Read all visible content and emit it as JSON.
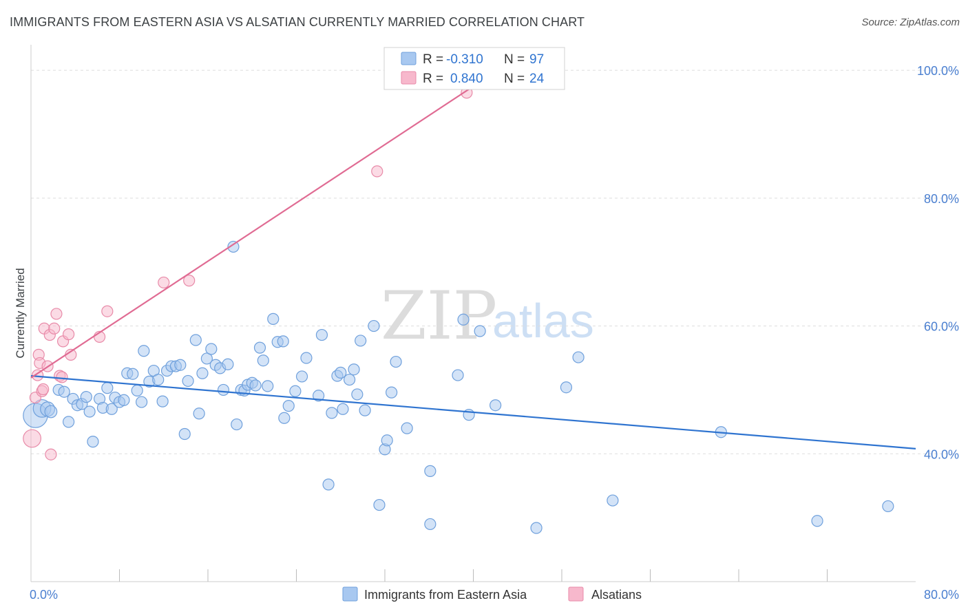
{
  "header": {
    "title": "IMMIGRANTS FROM EASTERN ASIA VS ALSATIAN CURRENTLY MARRIED CORRELATION CHART",
    "source": "Source: ZipAtlas.com"
  },
  "watermark": {
    "zip": "ZIP",
    "atlas": "atlas"
  },
  "colors": {
    "blue_fill": "#a8c8f0",
    "blue_stroke": "#6fa0dc",
    "blue_line": "#2f74d0",
    "pink_fill": "#f7b8cc",
    "pink_stroke": "#e88aa8",
    "pink_line": "#e06b93",
    "axis_text": "#4a7fd0",
    "grid": "#dddddd"
  },
  "legend_top": {
    "rows": [
      {
        "r_label": "R =",
        "r_value": "-0.310",
        "n_label": "N =",
        "n_value": "97"
      },
      {
        "r_label": "R =",
        "r_value": "0.840",
        "n_label": "N =",
        "n_value": "24"
      }
    ]
  },
  "chart_data": {
    "type": "scatter",
    "title": "IMMIGRANTS FROM EASTERN ASIA VS ALSATIAN CURRENTLY MARRIED CORRELATION CHART",
    "xlabel": "",
    "ylabel": "Currently Married",
    "xlim": [
      0,
      80
    ],
    "ylim": [
      20,
      104
    ],
    "x_tick_labels": [
      {
        "value": 0,
        "label": "0.0%"
      },
      {
        "value": 80,
        "label": "80.0%"
      }
    ],
    "x_minor_ticks": [
      8,
      16,
      24,
      32,
      40,
      48,
      56,
      64,
      72
    ],
    "y_ticks": [
      {
        "value": 40,
        "label": "40.0%"
      },
      {
        "value": 60,
        "label": "60.0%"
      },
      {
        "value": 80,
        "label": "80.0%"
      },
      {
        "value": 100,
        "label": "100.0%"
      }
    ],
    "grid": true,
    "legend_position": "bottom-center",
    "series": [
      {
        "name": "Immigrants from Eastern Asia",
        "color": "#a8c8f0",
        "R": -0.31,
        "N": 97,
        "trend": {
          "x": [
            0,
            80
          ],
          "y": [
            52.2,
            40.8
          ]
        },
        "points": [
          {
            "x": 0.4,
            "y": 46.0,
            "s": 2.2
          },
          {
            "x": 1.0,
            "y": 47.1,
            "s": 1.6
          },
          {
            "x": 1.5,
            "y": 47.0,
            "s": 1.3
          },
          {
            "x": 1.8,
            "y": 46.6,
            "s": 1.1
          },
          {
            "x": 2.5,
            "y": 50.0
          },
          {
            "x": 3.0,
            "y": 49.7
          },
          {
            "x": 3.4,
            "y": 45.0
          },
          {
            "x": 3.8,
            "y": 48.6
          },
          {
            "x": 4.2,
            "y": 47.6
          },
          {
            "x": 4.6,
            "y": 47.8
          },
          {
            "x": 5.0,
            "y": 48.9
          },
          {
            "x": 5.3,
            "y": 46.6
          },
          {
            "x": 5.6,
            "y": 41.9
          },
          {
            "x": 6.2,
            "y": 48.6
          },
          {
            "x": 6.5,
            "y": 47.2
          },
          {
            "x": 6.9,
            "y": 50.3
          },
          {
            "x": 7.3,
            "y": 47.0
          },
          {
            "x": 7.6,
            "y": 48.8
          },
          {
            "x": 8.0,
            "y": 48.1
          },
          {
            "x": 8.4,
            "y": 48.4
          },
          {
            "x": 8.7,
            "y": 52.6
          },
          {
            "x": 9.2,
            "y": 52.5
          },
          {
            "x": 9.6,
            "y": 49.9
          },
          {
            "x": 10.0,
            "y": 48.1
          },
          {
            "x": 10.2,
            "y": 56.1
          },
          {
            "x": 10.7,
            "y": 51.3
          },
          {
            "x": 11.1,
            "y": 53.0
          },
          {
            "x": 11.5,
            "y": 51.6
          },
          {
            "x": 11.9,
            "y": 48.2
          },
          {
            "x": 12.3,
            "y": 53.0
          },
          {
            "x": 12.7,
            "y": 53.7
          },
          {
            "x": 13.1,
            "y": 53.7
          },
          {
            "x": 13.5,
            "y": 53.9
          },
          {
            "x": 13.9,
            "y": 43.1
          },
          {
            "x": 14.2,
            "y": 51.4
          },
          {
            "x": 14.9,
            "y": 57.8
          },
          {
            "x": 15.2,
            "y": 46.3
          },
          {
            "x": 15.5,
            "y": 52.6
          },
          {
            "x": 15.9,
            "y": 54.9
          },
          {
            "x": 16.3,
            "y": 56.4
          },
          {
            "x": 16.7,
            "y": 53.9
          },
          {
            "x": 17.1,
            "y": 53.4
          },
          {
            "x": 17.4,
            "y": 50.0
          },
          {
            "x": 17.8,
            "y": 54.0
          },
          {
            "x": 18.3,
            "y": 72.4
          },
          {
            "x": 18.6,
            "y": 44.6
          },
          {
            "x": 19.0,
            "y": 50.0
          },
          {
            "x": 19.3,
            "y": 49.9
          },
          {
            "x": 19.6,
            "y": 50.8
          },
          {
            "x": 20.0,
            "y": 51.1
          },
          {
            "x": 20.3,
            "y": 50.7
          },
          {
            "x": 20.7,
            "y": 56.6
          },
          {
            "x": 21.0,
            "y": 54.6
          },
          {
            "x": 21.4,
            "y": 50.6
          },
          {
            "x": 21.9,
            "y": 61.1
          },
          {
            "x": 22.3,
            "y": 57.5
          },
          {
            "x": 22.8,
            "y": 57.6
          },
          {
            "x": 22.9,
            "y": 45.6
          },
          {
            "x": 23.3,
            "y": 47.5
          },
          {
            "x": 23.9,
            "y": 49.8
          },
          {
            "x": 24.5,
            "y": 52.1
          },
          {
            "x": 24.9,
            "y": 55.0
          },
          {
            "x": 26.0,
            "y": 49.1
          },
          {
            "x": 26.3,
            "y": 58.6
          },
          {
            "x": 26.9,
            "y": 35.2
          },
          {
            "x": 27.2,
            "y": 46.4
          },
          {
            "x": 27.7,
            "y": 52.2
          },
          {
            "x": 28.0,
            "y": 52.7
          },
          {
            "x": 28.2,
            "y": 47.0
          },
          {
            "x": 28.8,
            "y": 51.6
          },
          {
            "x": 29.2,
            "y": 53.2
          },
          {
            "x": 29.5,
            "y": 49.3
          },
          {
            "x": 29.8,
            "y": 57.7
          },
          {
            "x": 30.2,
            "y": 46.8
          },
          {
            "x": 31.0,
            "y": 60.0
          },
          {
            "x": 31.5,
            "y": 32.0
          },
          {
            "x": 32.0,
            "y": 40.7
          },
          {
            "x": 32.2,
            "y": 42.1
          },
          {
            "x": 32.6,
            "y": 49.6
          },
          {
            "x": 33.0,
            "y": 54.4
          },
          {
            "x": 34.0,
            "y": 44.0
          },
          {
            "x": 36.1,
            "y": 37.3
          },
          {
            "x": 36.1,
            "y": 29.0
          },
          {
            "x": 38.6,
            "y": 52.3
          },
          {
            "x": 39.1,
            "y": 61.0
          },
          {
            "x": 39.6,
            "y": 46.1
          },
          {
            "x": 40.6,
            "y": 59.2
          },
          {
            "x": 42.0,
            "y": 47.6
          },
          {
            "x": 45.7,
            "y": 28.4
          },
          {
            "x": 48.4,
            "y": 50.4
          },
          {
            "x": 49.5,
            "y": 55.1
          },
          {
            "x": 52.6,
            "y": 32.7
          },
          {
            "x": 62.4,
            "y": 43.4
          },
          {
            "x": 71.1,
            "y": 29.5
          },
          {
            "x": 77.5,
            "y": 31.8
          }
        ]
      },
      {
        "name": "Alsatians",
        "color": "#f7b8cc",
        "R": 0.84,
        "N": 24,
        "trend": {
          "x": [
            0,
            40
          ],
          "y": [
            51.9,
            97.5
          ]
        },
        "points": [
          {
            "x": 0.1,
            "y": 42.4,
            "s": 1.6
          },
          {
            "x": 0.4,
            "y": 48.8
          },
          {
            "x": 0.6,
            "y": 52.3
          },
          {
            "x": 0.7,
            "y": 55.5
          },
          {
            "x": 0.8,
            "y": 54.2
          },
          {
            "x": 1.0,
            "y": 49.8
          },
          {
            "x": 1.1,
            "y": 50.1
          },
          {
            "x": 1.2,
            "y": 59.6
          },
          {
            "x": 1.5,
            "y": 53.7
          },
          {
            "x": 1.7,
            "y": 58.6
          },
          {
            "x": 1.8,
            "y": 39.9
          },
          {
            "x": 2.1,
            "y": 59.6
          },
          {
            "x": 2.3,
            "y": 61.9
          },
          {
            "x": 2.6,
            "y": 52.2
          },
          {
            "x": 2.8,
            "y": 52.0
          },
          {
            "x": 2.9,
            "y": 57.6
          },
          {
            "x": 3.4,
            "y": 58.7
          },
          {
            "x": 3.6,
            "y": 55.5
          },
          {
            "x": 6.2,
            "y": 58.3
          },
          {
            "x": 6.9,
            "y": 62.3
          },
          {
            "x": 12.0,
            "y": 66.8
          },
          {
            "x": 14.3,
            "y": 67.1
          },
          {
            "x": 31.3,
            "y": 84.2
          },
          {
            "x": 39.4,
            "y": 96.5
          }
        ]
      }
    ]
  }
}
